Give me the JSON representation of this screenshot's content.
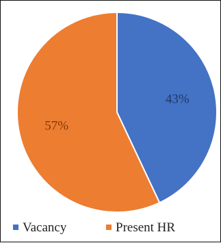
{
  "chart_data": {
    "type": "pie",
    "categories": [
      "Vacancy",
      "Present HR"
    ],
    "values": [
      43,
      57
    ],
    "data_labels": [
      "43%",
      "57%"
    ],
    "colors": [
      "#4472C4",
      "#ED7D31"
    ],
    "legend": [
      "Vacancy",
      "Present HR"
    ],
    "legend_position": "bottom",
    "start": "top, clockwise"
  }
}
